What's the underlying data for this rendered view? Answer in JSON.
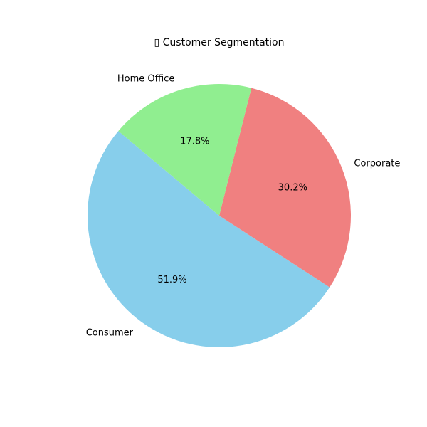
{
  "chart_data": {
    "type": "pie",
    "title": "▯ Customer Segmentation",
    "categories": [
      "Consumer",
      "Corporate",
      "Home Office"
    ],
    "values": [
      51.9,
      30.2,
      17.8
    ],
    "percent_labels": [
      "51.9%",
      "30.2%",
      "17.8%"
    ],
    "colors": [
      "#87ceeb",
      "#f08080",
      "#90ee90"
    ],
    "start_angle_deg": 140,
    "direction": "counterclockwise",
    "legend": "none"
  }
}
